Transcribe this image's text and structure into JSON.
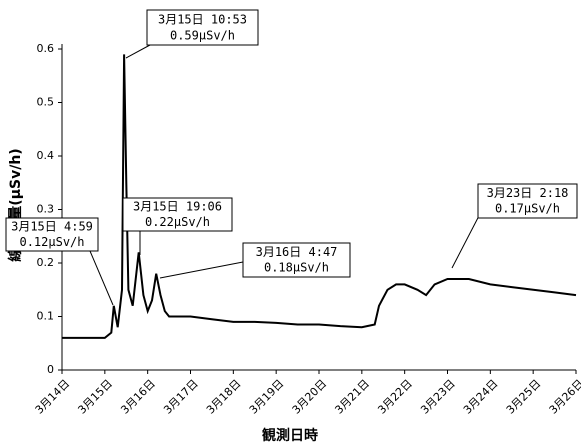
{
  "chart_data": {
    "type": "line",
    "ylabel": "線量当量(μSv/h)",
    "xlabel": "観測日時",
    "xlim": [
      14,
      26
    ],
    "ylim": [
      0,
      0.6
    ],
    "xticks": [
      {
        "value": 14,
        "label": "3月14日"
      },
      {
        "value": 15,
        "label": "3月15日"
      },
      {
        "value": 16,
        "label": "3月16日"
      },
      {
        "value": 17,
        "label": "3月17日"
      },
      {
        "value": 18,
        "label": "3月18日"
      },
      {
        "value": 19,
        "label": "3月19日"
      },
      {
        "value": 20,
        "label": "3月20日"
      },
      {
        "value": 21,
        "label": "3月21日"
      },
      {
        "value": 22,
        "label": "3月22日"
      },
      {
        "value": 23,
        "label": "3月23日"
      },
      {
        "value": 24,
        "label": "3月24日"
      },
      {
        "value": 25,
        "label": "3月25日"
      },
      {
        "value": 26,
        "label": "3月26日"
      }
    ],
    "yticks": [
      0,
      0.1,
      0.2,
      0.3,
      0.4,
      0.5,
      0.6
    ],
    "color": "#000000",
    "x": [
      14.0,
      14.5,
      15.0,
      15.15,
      15.21,
      15.3,
      15.4,
      15.45,
      15.5,
      15.55,
      15.65,
      15.79,
      15.9,
      16.0,
      16.1,
      16.2,
      16.3,
      16.4,
      16.5,
      17.0,
      17.5,
      18.0,
      18.5,
      19.0,
      19.5,
      20.0,
      20.5,
      21.0,
      21.3,
      21.4,
      21.6,
      21.8,
      22.0,
      22.3,
      22.5,
      22.7,
      23.0,
      23.1,
      23.5,
      24.0,
      24.5,
      25.0,
      25.5,
      26.0
    ],
    "values": [
      0.06,
      0.06,
      0.06,
      0.07,
      0.12,
      0.08,
      0.15,
      0.59,
      0.35,
      0.15,
      0.12,
      0.22,
      0.14,
      0.11,
      0.13,
      0.18,
      0.14,
      0.11,
      0.1,
      0.1,
      0.095,
      0.09,
      0.09,
      0.088,
      0.085,
      0.085,
      0.082,
      0.08,
      0.085,
      0.12,
      0.15,
      0.16,
      0.16,
      0.15,
      0.14,
      0.16,
      0.17,
      0.17,
      0.17,
      0.16,
      0.155,
      0.15,
      0.145,
      0.14
    ],
    "annotations": [
      {
        "time": "3月15日 10:53",
        "text": "0.59μSv/h"
      },
      {
        "time": "3月15日 4:59",
        "text": "0.12μSv/h"
      },
      {
        "time": "3月15日 19:06",
        "text": "0.22μSv/h"
      },
      {
        "time": "3月16日 4:47",
        "text": "0.18μSv/h"
      },
      {
        "time": "3月23日 2:18",
        "text": "0.17μSv/h"
      }
    ]
  }
}
